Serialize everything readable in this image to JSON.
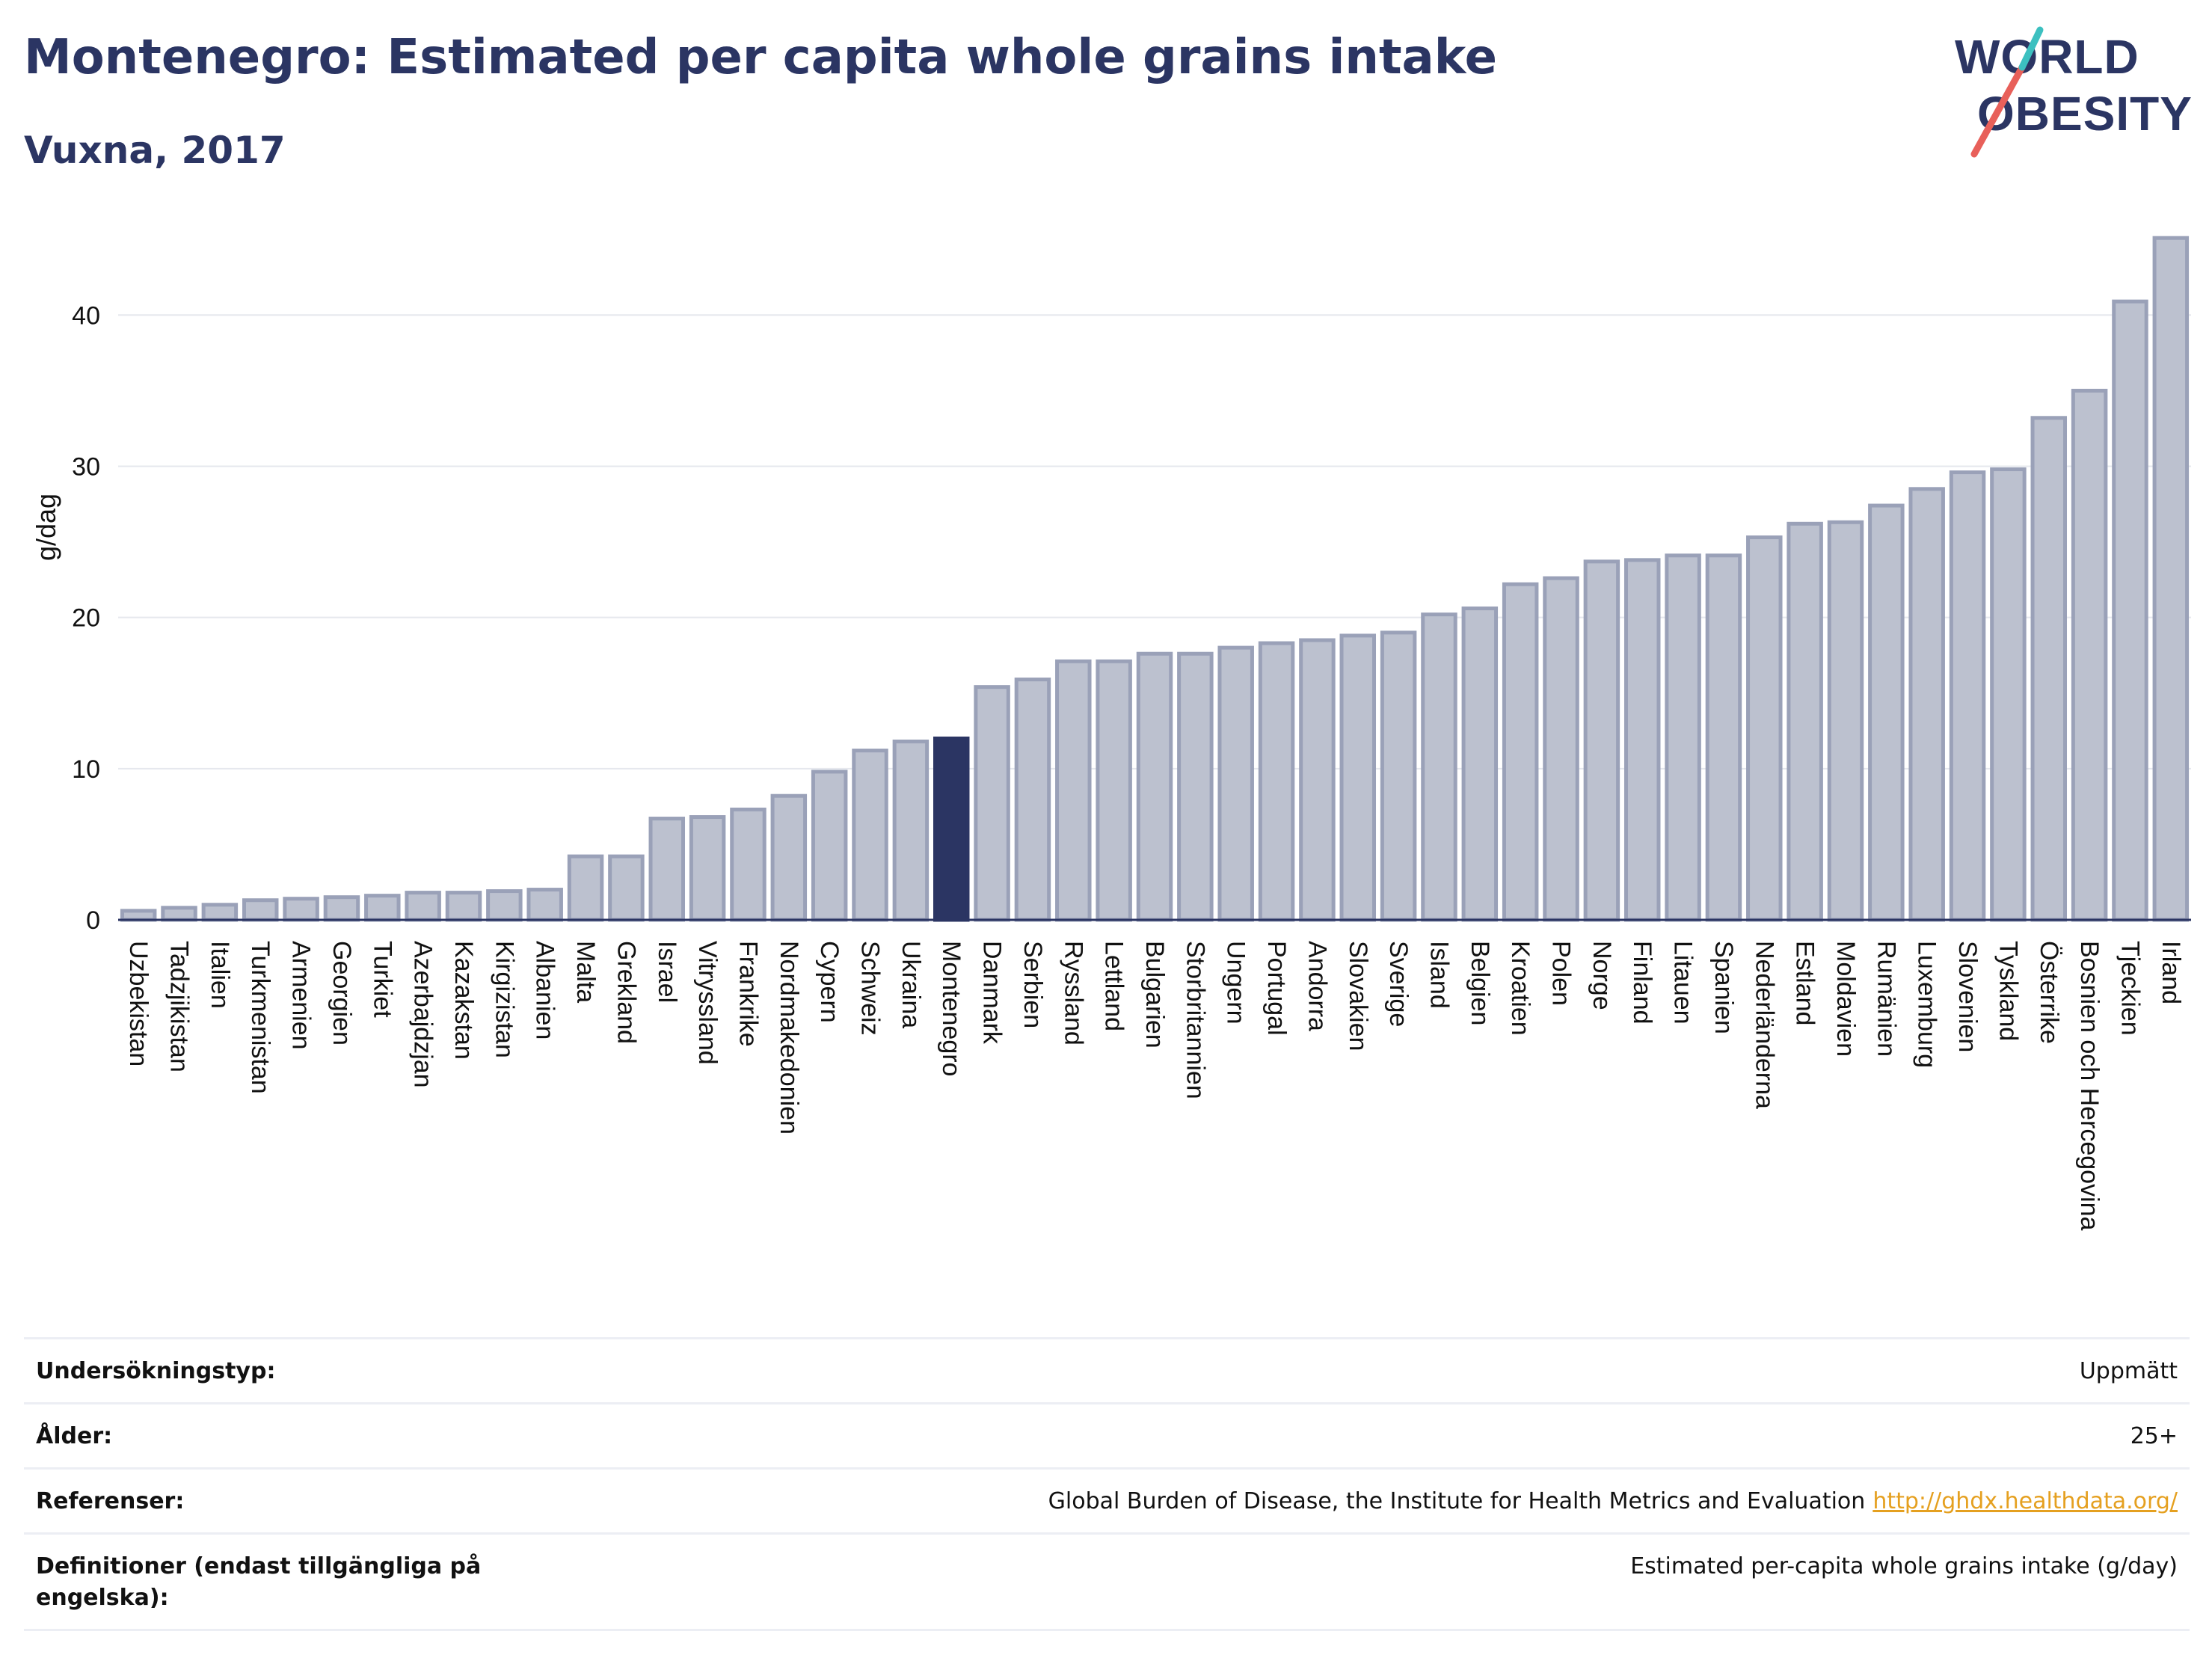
{
  "header": {
    "title": "Montenegro: Estimated per capita whole grains intake",
    "subtitle": "Vuxna, 2017"
  },
  "logo": {
    "text_line1": "WORLD",
    "text_line2": "OBESITY",
    "colors": {
      "text": "#2b3563",
      "slash_red": "#e8605a",
      "slash_teal": "#3cc0c0"
    }
  },
  "chart_data": {
    "type": "bar",
    "title": "Montenegro: Estimated per capita whole grains intake",
    "subtitle": "Vuxna, 2017",
    "xlabel": "",
    "ylabel": "g/dag",
    "ylim": [
      0,
      46
    ],
    "yticks": [
      0,
      10,
      20,
      30,
      40
    ],
    "grid": true,
    "highlight": "Montenegro",
    "colors": {
      "default_fill": "#bcc1cf",
      "default_stroke": "#9aa1b8",
      "highlight": "#2b3563"
    },
    "categories": [
      "Uzbekistan",
      "Tadzjikistan",
      "Italien",
      "Turkmenistan",
      "Armenien",
      "Georgien",
      "Turkiet",
      "Azerbajdzjan",
      "Kazakstan",
      "Kirgizistan",
      "Albanien",
      "Malta",
      "Grekland",
      "Israel",
      "Vitryssland",
      "Frankrike",
      "Nordmakedonien",
      "Cypern",
      "Schweiz",
      "Ukraina",
      "Montenegro",
      "Danmark",
      "Serbien",
      "Ryssland",
      "Lettland",
      "Bulgarien",
      "Storbritannien",
      "Ungern",
      "Portugal",
      "Andorra",
      "Slovakien",
      "Sverige",
      "Island",
      "Belgien",
      "Kroatien",
      "Polen",
      "Norge",
      "Finland",
      "Litauen",
      "Spanien",
      "Nederländerna",
      "Estland",
      "Moldavien",
      "Rumänien",
      "Luxemburg",
      "Slovenien",
      "Tyskland",
      "Österrike",
      "Bosnien och Hercegovina",
      "Tjeckien",
      "Irland"
    ],
    "values": [
      0.6,
      0.8,
      1.0,
      1.3,
      1.4,
      1.5,
      1.6,
      1.8,
      1.8,
      1.9,
      2.0,
      4.2,
      4.2,
      6.7,
      6.8,
      7.3,
      8.2,
      9.8,
      11.2,
      11.8,
      12.0,
      15.4,
      15.9,
      17.1,
      17.1,
      17.6,
      17.6,
      18.0,
      18.3,
      18.5,
      18.8,
      19.0,
      20.2,
      20.6,
      22.2,
      22.6,
      23.7,
      23.8,
      24.1,
      24.1,
      25.3,
      26.2,
      26.3,
      27.4,
      28.5,
      29.6,
      29.8,
      33.2,
      35.0,
      40.9,
      45.1
    ]
  },
  "metadata_table": {
    "rows": [
      {
        "label": "Undersökningstyp:",
        "value": "Uppmätt"
      },
      {
        "label": "Ålder:",
        "value": "25+"
      },
      {
        "label": "Referenser:",
        "value": "Global Burden of Disease, the Institute for Health Metrics and Evaluation",
        "link": "http://ghdx.healthdata.org/"
      },
      {
        "label": "Definitioner (endast tillgängliga på engelska):",
        "value": "Estimated per-capita whole grains intake (g/day)"
      }
    ]
  }
}
